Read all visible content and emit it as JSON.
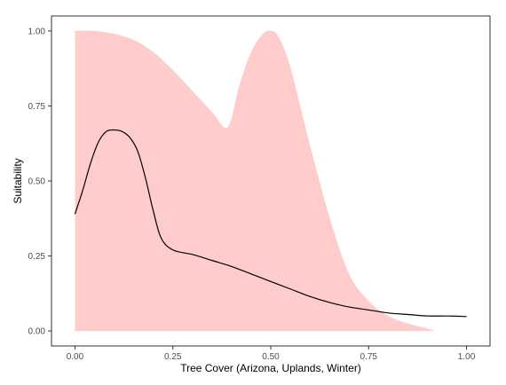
{
  "chart_data": {
    "type": "line",
    "title": "",
    "xlabel": "Tree Cover (Arizona, Uplands, Winter)",
    "ylabel": "Suitability",
    "xlim": [
      -0.06,
      1.06
    ],
    "ylim": [
      -0.05,
      1.05
    ],
    "x_ticks": [
      0.0,
      0.25,
      0.5,
      0.75,
      1.0
    ],
    "x_tick_labels": [
      "0.00",
      "0.25",
      "0.50",
      "0.75",
      "1.00"
    ],
    "y_ticks": [
      0.0,
      0.25,
      0.5,
      0.75,
      1.0
    ],
    "y_tick_labels": [
      "0.00",
      "0.25",
      "0.50",
      "0.75",
      "1.00"
    ],
    "grid": false,
    "series": [
      {
        "kind": "line",
        "color": "#000000",
        "x": [
          0.0,
          0.02,
          0.04,
          0.06,
          0.08,
          0.1,
          0.12,
          0.14,
          0.16,
          0.18,
          0.2,
          0.22,
          0.25,
          0.3,
          0.35,
          0.4,
          0.45,
          0.5,
          0.55,
          0.6,
          0.65,
          0.7,
          0.75,
          0.8,
          0.85,
          0.9,
          0.95,
          1.0
        ],
        "y": [
          0.39,
          0.47,
          0.56,
          0.63,
          0.665,
          0.67,
          0.665,
          0.645,
          0.6,
          0.51,
          0.4,
          0.31,
          0.27,
          0.255,
          0.235,
          0.215,
          0.19,
          0.165,
          0.14,
          0.115,
          0.095,
          0.08,
          0.07,
          0.06,
          0.055,
          0.05,
          0.05,
          0.048
        ]
      },
      {
        "kind": "band",
        "color": "#ffcccc",
        "x": [
          0.0,
          0.05,
          0.1,
          0.15,
          0.2,
          0.25,
          0.3,
          0.35,
          0.39,
          0.42,
          0.45,
          0.48,
          0.5,
          0.52,
          0.55,
          0.6,
          0.65,
          0.7,
          0.75,
          0.8,
          0.85,
          0.9,
          0.92
        ],
        "upper": [
          1.0,
          1.0,
          0.99,
          0.97,
          0.93,
          0.87,
          0.8,
          0.73,
          0.68,
          0.82,
          0.93,
          0.99,
          1.0,
          0.98,
          0.88,
          0.62,
          0.38,
          0.19,
          0.1,
          0.05,
          0.025,
          0.008,
          0.0
        ],
        "lower": [
          0.0,
          0.0,
          0.0,
          0.0,
          0.0,
          0.0,
          0.0,
          0.0,
          0.0,
          0.0,
          0.0,
          0.0,
          0.0,
          0.0,
          0.0,
          0.0,
          0.0,
          0.0,
          0.0,
          0.0,
          0.0,
          0.0,
          0.0
        ]
      }
    ]
  }
}
